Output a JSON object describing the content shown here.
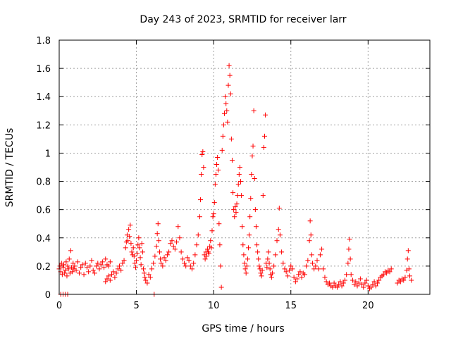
{
  "chart_data": {
    "type": "scatter",
    "title": "Day 243 of 2023, SRMTID for receiver larr",
    "xlabel": "GPS time / hours",
    "ylabel": "SRMTID / TECUs",
    "xlim": [
      0,
      24
    ],
    "ylim": [
      0,
      1.8
    ],
    "x_ticks": [
      0,
      5,
      10,
      15,
      20
    ],
    "y_ticks": [
      0,
      0.2,
      0.4,
      0.6,
      0.8,
      1,
      1.2,
      1.4,
      1.6,
      1.8
    ],
    "x_tick_labels": [
      "0",
      "5",
      "10",
      "15",
      "20"
    ],
    "y_tick_labels": [
      "0",
      "0.2",
      "0.4",
      "0.6",
      "0.8",
      "1",
      "1.2",
      "1.4",
      "1.6",
      "1.8"
    ],
    "grid": true,
    "marker": "+",
    "color": "#ff0000",
    "series": [
      {
        "name": "SRMTID",
        "points": [
          [
            0.0,
            0.18
          ],
          [
            0.05,
            0.2
          ],
          [
            0.1,
            0.16
          ],
          [
            0.15,
            0.22
          ],
          [
            0.2,
            0.14
          ],
          [
            0.25,
            0.19
          ],
          [
            0.3,
            0.21
          ],
          [
            0.35,
            0.15
          ],
          [
            0.4,
            0.17
          ],
          [
            0.45,
            0.23
          ],
          [
            0.5,
            0.13
          ],
          [
            0.55,
            0.2
          ],
          [
            0.6,
            0.18
          ],
          [
            0.65,
            0.25
          ],
          [
            0.7,
            0.15
          ],
          [
            0.75,
            0.31
          ],
          [
            0.8,
            0.19
          ],
          [
            0.85,
            0.16
          ],
          [
            0.9,
            0.22
          ],
          [
            0.95,
            0.18
          ],
          [
            1.0,
            0.2
          ],
          [
            1.1,
            0.17
          ],
          [
            1.2,
            0.23
          ],
          [
            1.3,
            0.15
          ],
          [
            1.4,
            0.19
          ],
          [
            1.5,
            0.21
          ],
          [
            1.6,
            0.14
          ],
          [
            1.7,
            0.22
          ],
          [
            1.8,
            0.19
          ],
          [
            1.9,
            0.16
          ],
          [
            2.0,
            0.2
          ],
          [
            2.1,
            0.24
          ],
          [
            2.2,
            0.17
          ],
          [
            2.3,
            0.15
          ],
          [
            2.4,
            0.2
          ],
          [
            2.5,
            0.22
          ],
          [
            2.6,
            0.18
          ],
          [
            2.7,
            0.21
          ],
          [
            2.8,
            0.23
          ],
          [
            2.9,
            0.19
          ],
          [
            3.0,
            0.25
          ],
          [
            3.1,
            0.21
          ],
          [
            3.2,
            0.2
          ],
          [
            3.3,
            0.23
          ],
          [
            0.1,
            0.0
          ],
          [
            0.25,
            0.0
          ],
          [
            0.4,
            0.0
          ],
          [
            0.55,
            0.0
          ],
          [
            3.0,
            0.09
          ],
          [
            3.1,
            0.11
          ],
          [
            3.2,
            0.13
          ],
          [
            3.3,
            0.1
          ],
          [
            3.4,
            0.14
          ],
          [
            3.5,
            0.16
          ],
          [
            3.6,
            0.12
          ],
          [
            3.7,
            0.15
          ],
          [
            3.8,
            0.18
          ],
          [
            3.9,
            0.2
          ],
          [
            4.0,
            0.17
          ],
          [
            4.1,
            0.22
          ],
          [
            4.2,
            0.24
          ],
          [
            4.3,
            0.33
          ],
          [
            4.35,
            0.37
          ],
          [
            4.4,
            0.42
          ],
          [
            4.45,
            0.38
          ],
          [
            4.5,
            0.46
          ],
          [
            4.55,
            0.41
          ],
          [
            4.6,
            0.49
          ],
          [
            4.65,
            0.36
          ],
          [
            4.7,
            0.3
          ],
          [
            4.75,
            0.28
          ],
          [
            4.8,
            0.33
          ],
          [
            4.85,
            0.27
          ],
          [
            4.9,
            0.22
          ],
          [
            4.95,
            0.19
          ],
          [
            5.0,
            0.24
          ],
          [
            5.05,
            0.29
          ],
          [
            5.1,
            0.35
          ],
          [
            5.15,
            0.4
          ],
          [
            5.2,
            0.33
          ],
          [
            5.25,
            0.26
          ],
          [
            5.3,
            0.21
          ],
          [
            5.35,
            0.36
          ],
          [
            5.4,
            0.3
          ],
          [
            5.45,
            0.18
          ],
          [
            5.5,
            0.15
          ],
          [
            5.55,
            0.12
          ],
          [
            5.6,
            0.1
          ],
          [
            5.7,
            0.08
          ],
          [
            5.8,
            0.14
          ],
          [
            5.9,
            0.12
          ],
          [
            6.0,
            0.18
          ],
          [
            6.1,
            0.22
          ],
          [
            6.15,
            0.0
          ],
          [
            6.2,
            0.27
          ],
          [
            6.3,
            0.34
          ],
          [
            6.35,
            0.43
          ],
          [
            6.4,
            0.5
          ],
          [
            6.45,
            0.38
          ],
          [
            6.5,
            0.3
          ],
          [
            6.55,
            0.25
          ],
          [
            6.6,
            0.22
          ],
          [
            6.7,
            0.2
          ],
          [
            6.8,
            0.26
          ],
          [
            6.9,
            0.24
          ],
          [
            7.0,
            0.28
          ],
          [
            7.1,
            0.3
          ],
          [
            7.2,
            0.36
          ],
          [
            7.3,
            0.38
          ],
          [
            7.4,
            0.34
          ],
          [
            7.5,
            0.32
          ],
          [
            7.6,
            0.37
          ],
          [
            7.7,
            0.48
          ],
          [
            7.8,
            0.4
          ],
          [
            7.9,
            0.3
          ],
          [
            8.0,
            0.25
          ],
          [
            8.1,
            0.22
          ],
          [
            8.2,
            0.2
          ],
          [
            8.3,
            0.26
          ],
          [
            8.4,
            0.24
          ],
          [
            8.5,
            0.2
          ],
          [
            8.6,
            0.18
          ],
          [
            8.7,
            0.22
          ],
          [
            8.8,
            0.28
          ],
          [
            8.9,
            0.35
          ],
          [
            9.0,
            0.42
          ],
          [
            9.1,
            0.55
          ],
          [
            9.15,
            0.67
          ],
          [
            9.2,
            0.85
          ],
          [
            9.25,
            0.99
          ],
          [
            9.3,
            1.01
          ],
          [
            9.35,
            0.9
          ],
          [
            9.4,
            0.28
          ],
          [
            9.45,
            0.25
          ],
          [
            9.5,
            0.3
          ],
          [
            9.55,
            0.27
          ],
          [
            9.6,
            0.32
          ],
          [
            9.65,
            0.3
          ],
          [
            9.7,
            0.29
          ],
          [
            9.75,
            0.34
          ],
          [
            9.8,
            0.38
          ],
          [
            9.85,
            0.33
          ],
          [
            9.9,
            0.45
          ],
          [
            9.95,
            0.55
          ],
          [
            10.0,
            0.57
          ],
          [
            10.05,
            0.65
          ],
          [
            10.1,
            0.78
          ],
          [
            10.15,
            0.85
          ],
          [
            10.2,
            0.92
          ],
          [
            10.25,
            0.97
          ],
          [
            10.3,
            0.88
          ],
          [
            10.35,
            0.5
          ],
          [
            10.4,
            0.35
          ],
          [
            10.45,
            0.2
          ],
          [
            10.5,
            0.05
          ],
          [
            10.55,
            1.02
          ],
          [
            10.6,
            1.12
          ],
          [
            10.65,
            1.2
          ],
          [
            10.7,
            1.28
          ],
          [
            10.75,
            1.4
          ],
          [
            10.8,
            1.35
          ],
          [
            10.85,
            1.3
          ],
          [
            10.9,
            1.22
          ],
          [
            10.95,
            1.48
          ],
          [
            11.0,
            1.62
          ],
          [
            11.05,
            1.55
          ],
          [
            11.1,
            1.42
          ],
          [
            11.15,
            1.1
          ],
          [
            11.2,
            0.95
          ],
          [
            11.25,
            0.72
          ],
          [
            11.3,
            0.6
          ],
          [
            11.35,
            0.55
          ],
          [
            11.4,
            0.62
          ],
          [
            11.45,
            0.58
          ],
          [
            11.5,
            0.64
          ],
          [
            11.55,
            0.7
          ],
          [
            11.6,
            0.78
          ],
          [
            11.65,
            0.85
          ],
          [
            11.7,
            0.9
          ],
          [
            11.75,
            0.8
          ],
          [
            11.8,
            0.7
          ],
          [
            11.85,
            0.48
          ],
          [
            11.9,
            0.35
          ],
          [
            11.95,
            0.28
          ],
          [
            12.0,
            0.22
          ],
          [
            12.05,
            0.18
          ],
          [
            12.1,
            0.15
          ],
          [
            12.15,
            0.2
          ],
          [
            12.2,
            0.25
          ],
          [
            12.25,
            0.33
          ],
          [
            12.3,
            0.42
          ],
          [
            12.35,
            0.55
          ],
          [
            12.4,
            0.68
          ],
          [
            12.45,
            0.85
          ],
          [
            12.5,
            0.98
          ],
          [
            12.55,
            1.05
          ],
          [
            12.6,
            1.3
          ],
          [
            12.65,
            0.82
          ],
          [
            12.7,
            0.6
          ],
          [
            12.75,
            0.48
          ],
          [
            12.8,
            0.35
          ],
          [
            12.85,
            0.3
          ],
          [
            12.9,
            0.25
          ],
          [
            12.95,
            0.2
          ],
          [
            13.0,
            0.18
          ],
          [
            13.05,
            0.15
          ],
          [
            13.1,
            0.13
          ],
          [
            13.15,
            0.17
          ],
          [
            13.2,
            0.7
          ],
          [
            13.25,
            1.04
          ],
          [
            13.3,
            1.12
          ],
          [
            13.35,
            1.27
          ],
          [
            13.4,
            0.22
          ],
          [
            13.45,
            0.19
          ],
          [
            13.5,
            0.25
          ],
          [
            13.55,
            0.3
          ],
          [
            13.6,
            0.22
          ],
          [
            13.65,
            0.18
          ],
          [
            13.7,
            0.14
          ],
          [
            13.75,
            0.12
          ],
          [
            13.8,
            0.15
          ],
          [
            13.9,
            0.2
          ],
          [
            14.0,
            0.28
          ],
          [
            14.1,
            0.38
          ],
          [
            14.2,
            0.46
          ],
          [
            14.25,
            0.61
          ],
          [
            14.3,
            0.42
          ],
          [
            14.4,
            0.3
          ],
          [
            14.5,
            0.22
          ],
          [
            14.6,
            0.18
          ],
          [
            14.7,
            0.16
          ],
          [
            14.8,
            0.13
          ],
          [
            14.9,
            0.17
          ],
          [
            15.0,
            0.2
          ],
          [
            15.1,
            0.18
          ],
          [
            15.2,
            0.12
          ],
          [
            15.3,
            0.09
          ],
          [
            15.4,
            0.11
          ],
          [
            15.5,
            0.14
          ],
          [
            15.6,
            0.16
          ],
          [
            15.7,
            0.12
          ],
          [
            15.8,
            0.15
          ],
          [
            15.9,
            0.14
          ],
          [
            16.0,
            0.2
          ],
          [
            16.1,
            0.24
          ],
          [
            16.2,
            0.38
          ],
          [
            16.25,
            0.52
          ],
          [
            16.3,
            0.42
          ],
          [
            16.35,
            0.28
          ],
          [
            16.4,
            0.22
          ],
          [
            16.5,
            0.18
          ],
          [
            16.6,
            0.2
          ],
          [
            16.7,
            0.24
          ],
          [
            16.8,
            0.18
          ],
          [
            16.9,
            0.28
          ],
          [
            17.0,
            0.32
          ],
          [
            17.1,
            0.18
          ],
          [
            17.2,
            0.12
          ],
          [
            17.3,
            0.09
          ],
          [
            17.4,
            0.07
          ],
          [
            17.5,
            0.08
          ],
          [
            17.6,
            0.06
          ],
          [
            17.7,
            0.05
          ],
          [
            17.8,
            0.08
          ],
          [
            17.9,
            0.06
          ],
          [
            18.0,
            0.05
          ],
          [
            18.1,
            0.07
          ],
          [
            18.2,
            0.09
          ],
          [
            18.3,
            0.06
          ],
          [
            18.4,
            0.08
          ],
          [
            18.5,
            0.1
          ],
          [
            18.6,
            0.14
          ],
          [
            18.7,
            0.22
          ],
          [
            18.75,
            0.32
          ],
          [
            18.8,
            0.39
          ],
          [
            18.85,
            0.25
          ],
          [
            18.9,
            0.14
          ],
          [
            19.0,
            0.1
          ],
          [
            19.1,
            0.07
          ],
          [
            19.2,
            0.09
          ],
          [
            19.3,
            0.06
          ],
          [
            19.4,
            0.08
          ],
          [
            19.5,
            0.11
          ],
          [
            19.6,
            0.07
          ],
          [
            19.7,
            0.05
          ],
          [
            19.8,
            0.08
          ],
          [
            19.9,
            0.1
          ],
          [
            20.0,
            0.06
          ],
          [
            20.1,
            0.04
          ],
          [
            20.2,
            0.05
          ],
          [
            20.3,
            0.07
          ],
          [
            20.4,
            0.09
          ],
          [
            20.5,
            0.06
          ],
          [
            20.6,
            0.08
          ],
          [
            20.7,
            0.1
          ],
          [
            20.8,
            0.12
          ],
          [
            20.9,
            0.13
          ],
          [
            21.0,
            0.14
          ],
          [
            21.1,
            0.16
          ],
          [
            21.2,
            0.15
          ],
          [
            21.3,
            0.17
          ],
          [
            21.4,
            0.16
          ],
          [
            21.5,
            0.18
          ],
          [
            21.9,
            0.08
          ],
          [
            22.0,
            0.1
          ],
          [
            22.1,
            0.09
          ],
          [
            22.2,
            0.11
          ],
          [
            22.3,
            0.1
          ],
          [
            22.4,
            0.12
          ],
          [
            22.5,
            0.17
          ],
          [
            22.55,
            0.25
          ],
          [
            22.6,
            0.31
          ],
          [
            22.65,
            0.18
          ],
          [
            22.7,
            0.13
          ],
          [
            22.8,
            0.1
          ]
        ]
      }
    ]
  }
}
